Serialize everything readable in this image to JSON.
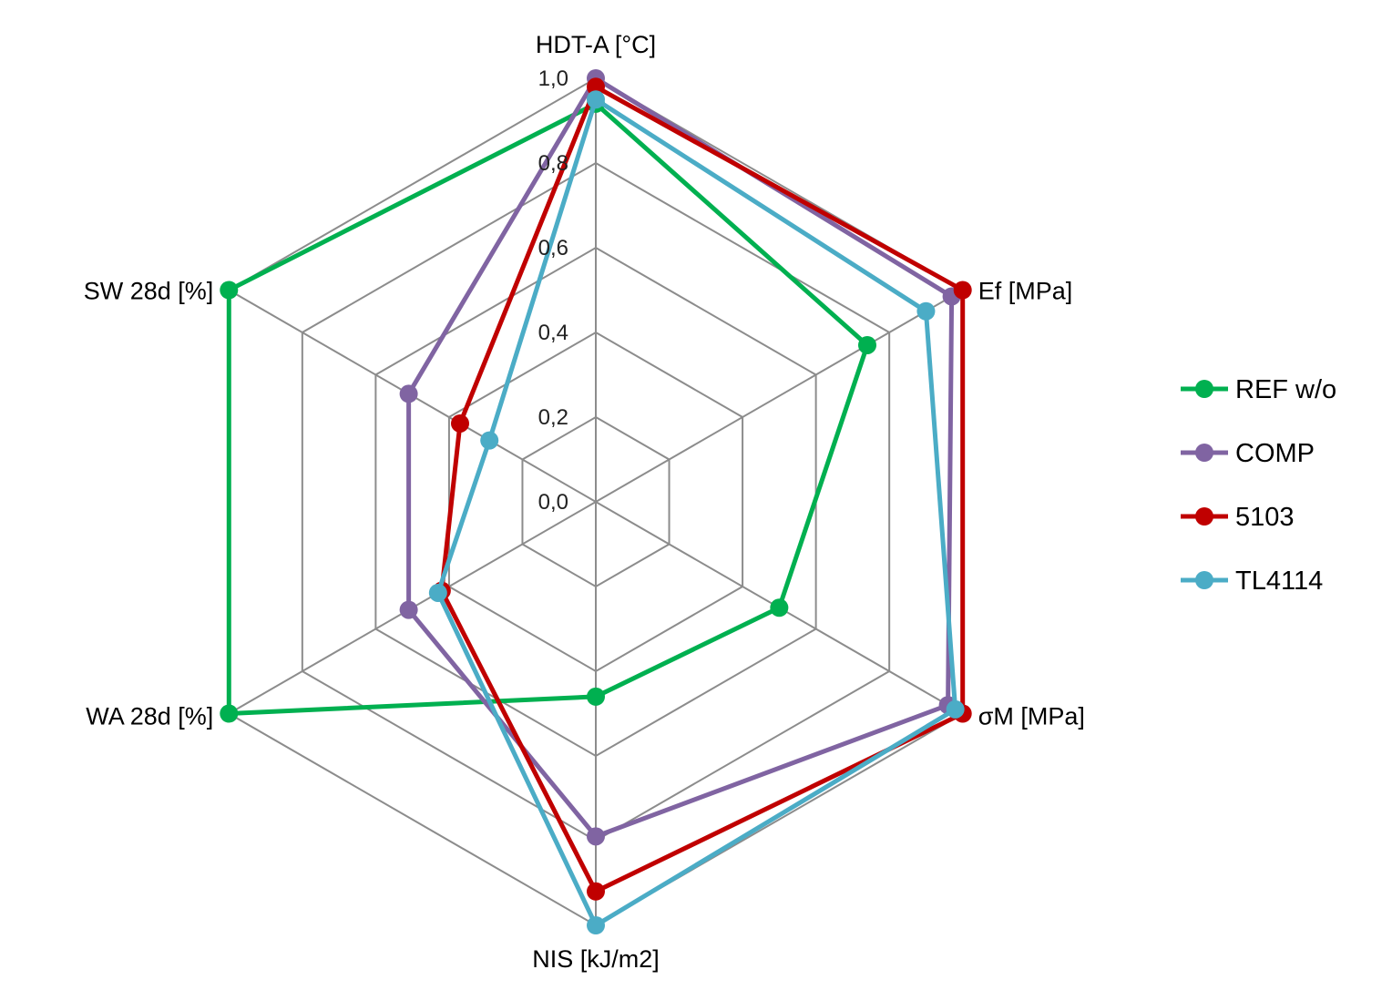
{
  "chart_data": {
    "type": "radar",
    "axes": [
      "HDT-A [°C]",
      "Ef [MPa]",
      "σM [MPa]",
      "NIS [kJ/m2]",
      "WA 28d [%]",
      "SW 28d [%]"
    ],
    "r_ticks": [
      "0,0",
      "0,2",
      "0,4",
      "0,6",
      "0,8",
      "1,0"
    ],
    "r_range": [
      0,
      1
    ],
    "grid": true,
    "legend_position": "right",
    "series": [
      {
        "name": "REF w/o",
        "color": "#00b050",
        "values": [
          0.94,
          0.74,
          0.5,
          0.46,
          1.0,
          1.0
        ]
      },
      {
        "name": "COMP",
        "color": "#8064a2",
        "values": [
          1.0,
          0.97,
          0.96,
          0.79,
          0.51,
          0.51
        ]
      },
      {
        "name": "5103",
        "color": "#c00000",
        "values": [
          0.98,
          1.0,
          1.0,
          0.92,
          0.42,
          0.37
        ]
      },
      {
        "name": "TL4114",
        "color": "#4bacc6",
        "values": [
          0.95,
          0.9,
          0.98,
          1.0,
          0.43,
          0.29
        ]
      }
    ]
  }
}
